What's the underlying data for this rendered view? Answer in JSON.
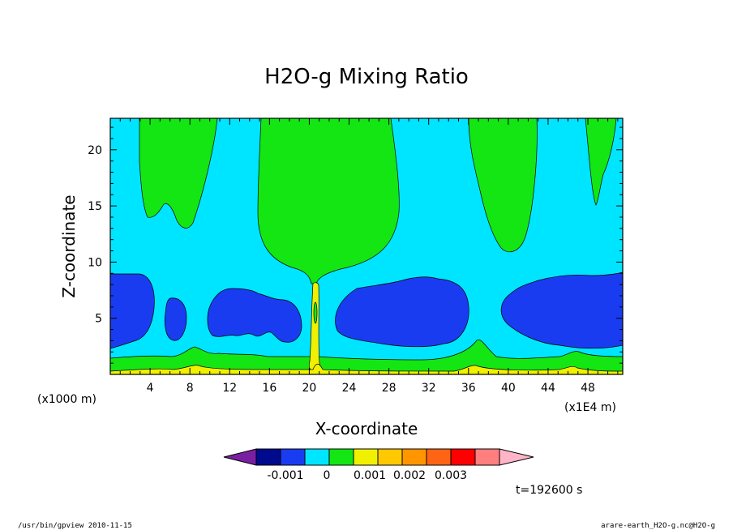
{
  "chart_data": {
    "type": "contour",
    "title": "H2O-g Mixing Ratio",
    "xlabel": "X-coordinate",
    "ylabel": "Z-coordinate",
    "x_unit_left": "(x1000 m)",
    "x_unit_right": "(x1E4 m)",
    "xlim": [
      0,
      51.5
    ],
    "ylim": [
      0,
      22.8
    ],
    "x_ticks": [
      4,
      8,
      12,
      16,
      20,
      24,
      28,
      32,
      36,
      40,
      44,
      48
    ],
    "y_ticks": [
      5,
      10,
      15,
      20
    ],
    "colorbar": {
      "colors": [
        "#7a1fa2",
        "#000a8c",
        "#1a3cf0",
        "#00e5ff",
        "#14e614",
        "#f0f000",
        "#ffc800",
        "#ff9600",
        "#ff6414",
        "#ff0000",
        "#ff7f7f",
        "#ffb4c8"
      ],
      "labels": [
        "-0.001",
        "0",
        "0.001",
        "0.002",
        "0.003"
      ]
    },
    "time_label": "t=192600 s"
  },
  "footer": {
    "left": "/usr/bin/gpview   2010-11-15",
    "right": "arare-earth_H2O-g.nc@H2O-g"
  }
}
